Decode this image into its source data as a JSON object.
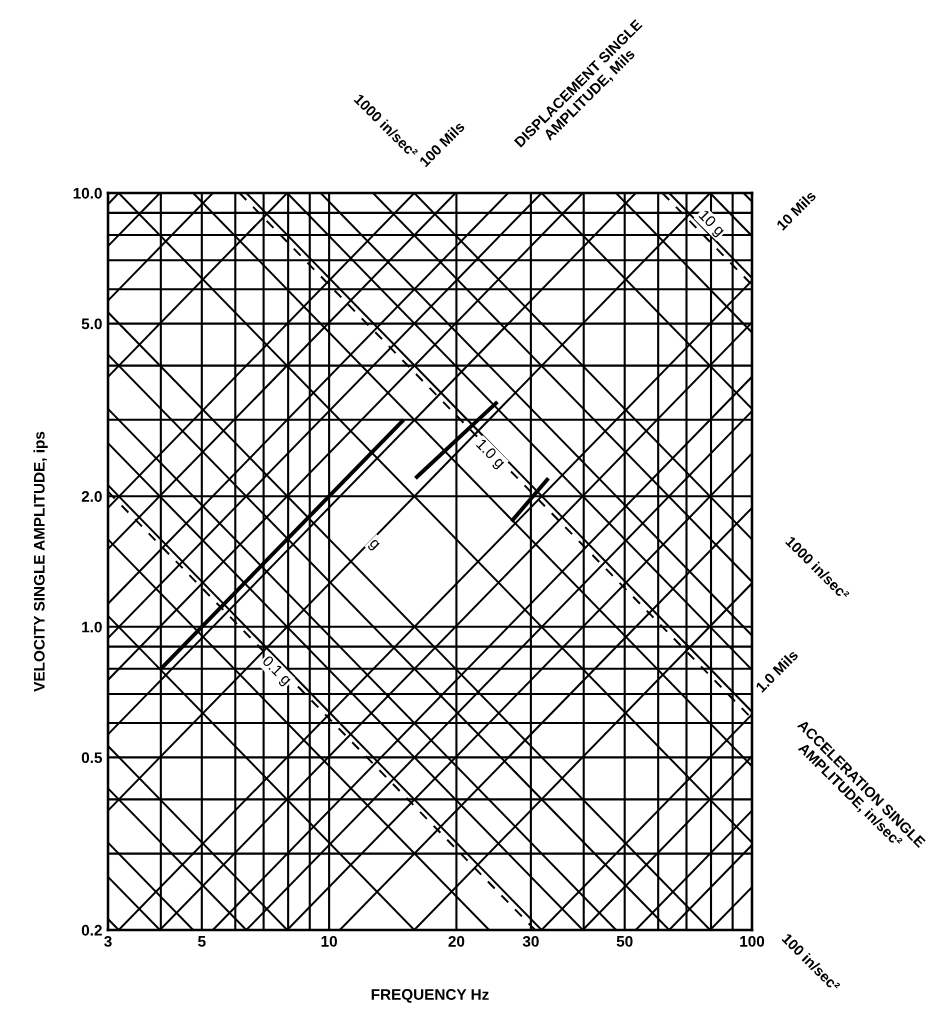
{
  "chart_data": {
    "type": "line",
    "xlabel": "FREQUENCY Hz",
    "ylabel": "VELOCITY SINGLE AMPLITUDE, ips",
    "log": "xy",
    "grid": true,
    "line_style": "solid",
    "xlim": [
      3,
      100
    ],
    "ylim": [
      0.2,
      10
    ],
    "xticks": [
      3,
      {
        "value": 4,
        "label": null
      },
      5,
      {
        "value": 6,
        "label": null
      },
      {
        "value": 7,
        "label": null
      },
      {
        "value": 8,
        "label": null
      },
      {
        "value": 9,
        "label": null
      },
      10,
      20,
      30,
      {
        "value": 40,
        "label": null
      },
      50,
      {
        "value": 60,
        "label": null
      },
      {
        "value": 70,
        "label": null
      },
      {
        "value": 80,
        "label": null
      },
      {
        "value": 90,
        "label": null
      },
      100
    ],
    "yticks": [
      0.2,
      {
        "value": 0.3,
        "label": null
      },
      {
        "value": 0.4,
        "label": null
      },
      0.5,
      {
        "value": 0.6,
        "label": null
      },
      {
        "value": 0.7,
        "label": null
      },
      {
        "value": 0.8,
        "label": null
      },
      {
        "value": 0.9,
        "label": null
      },
      {
        "value": 1,
        "label": "1.0"
      },
      {
        "value": 2,
        "label": "2.0"
      },
      {
        "value": 3,
        "label": null
      },
      {
        "value": 4,
        "label": null
      },
      {
        "value": 5,
        "label": "5.0"
      },
      {
        "value": 6,
        "label": null
      },
      {
        "value": 7,
        "label": null
      },
      {
        "value": 8,
        "label": null
      },
      {
        "value": 9,
        "label": null
      },
      {
        "value": 10,
        "label": "10.0"
      }
    ],
    "annotations": [
      "1000 in/sec²",
      "100 Mils",
      "DISPLACEMENT SINGLE\nAMPLITUDE, Mils",
      "10 Mils",
      "1000 in/sec²",
      "1.0 Mils",
      "ACCELERATION SINGLE\nAMPLITUDE, in/sec²",
      "100 in/sec²",
      {
        "text": "10 g",
        "x": 80,
        "y": 8.5
      },
      {
        "text": "1.0 g",
        "x": 24,
        "y": 2.5
      },
      {
        "text": "g",
        "x": 12.8,
        "y": 1.55
      },
      {
        "text": "0.1 g",
        "x": 7.5,
        "y": 0.79
      }
    ],
    "series": [
      {
        "color": "#000000",
        "x": [
          79.6,
          100
        ],
        "values": [
          0.2,
          0.251
        ]
      },
      {
        "color": "#000000",
        "x": [
          63.7,
          100
        ],
        "values": [
          0.2,
          0.314
        ]
      },
      {
        "color": "#000000",
        "x": [
          53.1,
          100
        ],
        "values": [
          0.2,
          0.377
        ]
      },
      {
        "color": "#000000",
        "x": [
          39.8,
          100
        ],
        "values": [
          0.2,
          0.503
        ]
      },
      {
        "color": "#000000",
        "x": [
          31.8,
          100
        ],
        "values": [
          0.2,
          0.628
        ]
      },
      {
        "color": "#000000",
        "x": [
          15.9,
          100
        ],
        "values": [
          0.2,
          1.26
        ]
      },
      {
        "color": "#000000",
        "x": [
          10.6,
          100
        ],
        "values": [
          0.2,
          1.88
        ]
      },
      {
        "color": "#000000",
        "x": [
          7.96,
          100
        ],
        "values": [
          0.2,
          2.51
        ]
      },
      {
        "color": "#000000",
        "x": [
          6.37,
          100
        ],
        "values": [
          0.2,
          3.14
        ]
      },
      {
        "color": "#000000",
        "x": [
          5.31,
          100
        ],
        "values": [
          0.2,
          3.77
        ]
      },
      {
        "color": "#000000",
        "x": [
          3.98,
          100
        ],
        "values": [
          0.2,
          5.03
        ]
      },
      {
        "color": "#000000",
        "x": [
          3.18,
          100
        ],
        "values": [
          0.2,
          6.28
        ]
      },
      {
        "color": "#000000",
        "x": [
          3,
          79.6
        ],
        "values": [
          0.377,
          10
        ]
      },
      {
        "color": "#000000",
        "x": [
          3,
          53.1
        ],
        "values": [
          0.565,
          10
        ]
      },
      {
        "color": "#000000",
        "x": [
          3,
          39.8
        ],
        "values": [
          0.754,
          10
        ]
      },
      {
        "color": "#000000",
        "x": [
          3,
          31.8
        ],
        "values": [
          0.942,
          10
        ]
      },
      {
        "color": "#000000",
        "x": [
          3,
          26.5
        ],
        "values": [
          1.13,
          10
        ]
      },
      {
        "color": "#000000",
        "x": [
          3,
          19.9
        ],
        "values": [
          1.51,
          10
        ]
      },
      {
        "color": "#000000",
        "x": [
          3,
          15.9
        ],
        "values": [
          1.88,
          10
        ]
      },
      {
        "color": "#000000",
        "x": [
          3,
          7.96
        ],
        "values": [
          3.77,
          10
        ]
      },
      {
        "color": "#000000",
        "x": [
          3,
          5.31
        ],
        "values": [
          5.65,
          10
        ]
      },
      {
        "color": "#000000",
        "x": [
          3,
          3.98
        ],
        "values": [
          7.54,
          10
        ]
      },
      {
        "color": "#000000",
        "x": [
          3,
          3.18
        ],
        "values": [
          9.42,
          10
        ]
      },
      {
        "color": "#000000",
        "x": [
          3,
          3.18
        ],
        "values": [
          0.212,
          0.2
        ]
      },
      {
        "color": "#000000",
        "x": [
          3,
          3.98
        ],
        "values": [
          0.265,
          0.2
        ]
      },
      {
        "color": "#000000",
        "x": [
          3,
          4.77
        ],
        "values": [
          0.318,
          0.2
        ]
      },
      {
        "color": "#000000",
        "x": [
          3,
          6.37
        ],
        "values": [
          0.424,
          0.2
        ]
      },
      {
        "color": "#000000",
        "x": [
          3,
          7.96
        ],
        "values": [
          0.531,
          0.2
        ]
      },
      {
        "color": "#000000",
        "x": [
          3,
          15.9
        ],
        "values": [
          1.06,
          0.2
        ]
      },
      {
        "color": "#000000",
        "x": [
          3,
          23.9
        ],
        "values": [
          1.59,
          0.2
        ]
      },
      {
        "color": "#000000",
        "x": [
          3,
          31.8
        ],
        "values": [
          2.12,
          0.2
        ]
      },
      {
        "color": "#000000",
        "x": [
          3,
          39.8
        ],
        "values": [
          2.65,
          0.2
        ]
      },
      {
        "color": "#000000",
        "x": [
          3,
          47.7
        ],
        "values": [
          3.18,
          0.2
        ]
      },
      {
        "color": "#000000",
        "x": [
          3,
          63.7
        ],
        "values": [
          4.24,
          0.2
        ]
      },
      {
        "color": "#000000",
        "x": [
          3,
          79.6
        ],
        "values": [
          5.31,
          0.2
        ]
      },
      {
        "color": "#000000",
        "x": [
          3.18,
          100
        ],
        "values": [
          10,
          0.318
        ]
      },
      {
        "color": "#000000",
        "x": [
          4.77,
          100
        ],
        "values": [
          10,
          0.477
        ]
      },
      {
        "color": "#000000",
        "x": [
          6.37,
          100
        ],
        "values": [
          10,
          0.637
        ]
      },
      {
        "color": "#000000",
        "x": [
          7.96,
          100
        ],
        "values": [
          10,
          0.796
        ]
      },
      {
        "color": "#000000",
        "x": [
          9.55,
          100
        ],
        "values": [
          10,
          0.955
        ]
      },
      {
        "color": "#000000",
        "x": [
          12.7,
          100
        ],
        "values": [
          10,
          1.27
        ]
      },
      {
        "color": "#000000",
        "x": [
          15.9,
          100
        ],
        "values": [
          10,
          1.59
        ]
      },
      {
        "color": "#000000",
        "x": [
          31.8,
          100
        ],
        "values": [
          10,
          3.18
        ]
      },
      {
        "color": "#000000",
        "x": [
          47.7,
          100
        ],
        "values": [
          10,
          4.77
        ]
      },
      {
        "color": "#000000",
        "x": [
          63.7,
          100
        ],
        "values": [
          10,
          6.37
        ]
      },
      {
        "color": "#000000",
        "x": [
          79.6,
          100
        ],
        "values": [
          10,
          7.96
        ]
      },
      {
        "color": "#000000",
        "x": [
          95.5,
          100
        ],
        "values": [
          10,
          9.55
        ]
      },
      {
        "color": "#000000",
        "line_style": "dashed",
        "x": [
          3,
          30.7
        ],
        "values": [
          2.05,
          0.2
        ]
      },
      {
        "color": "#000000",
        "line_style": "dashed",
        "x": [
          6.14,
          100
        ],
        "values": [
          10,
          0.614
        ]
      },
      {
        "color": "#000000",
        "line_style": "dashed",
        "x": [
          61.4,
          100
        ],
        "values": [
          10,
          6.14
        ]
      },
      {
        "color": "#000000",
        "x": [
          4,
          15
        ],
        "values": [
          0.8,
          3.0
        ]
      },
      {
        "color": "#000000",
        "x": [
          16,
          25
        ],
        "values": [
          2.2,
          3.3
        ]
      },
      {
        "color": "#000000",
        "x": [
          27,
          33
        ],
        "values": [
          1.75,
          2.2
        ]
      }
    ]
  }
}
